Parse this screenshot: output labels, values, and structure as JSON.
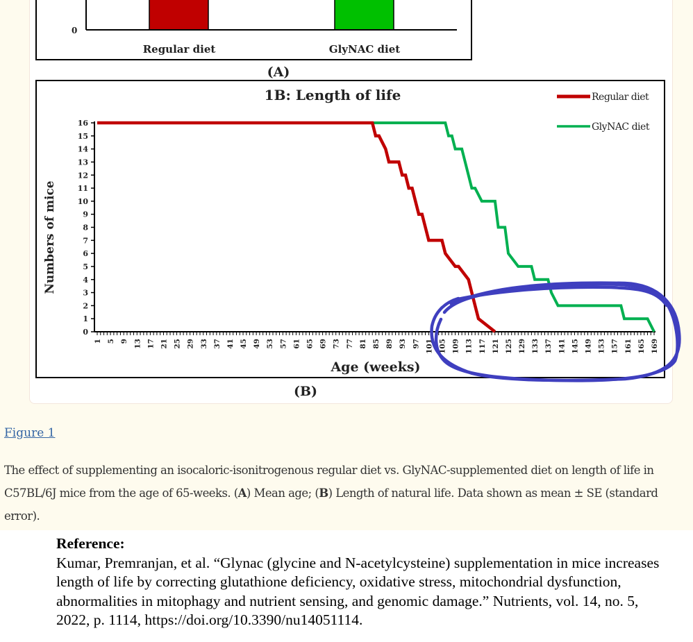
{
  "figure": {
    "panel_a": {
      "y_zero_label": "0",
      "bar_labels": [
        "Regular diet",
        "GlyNAC diet"
      ],
      "bar_colors": [
        "#c00000",
        "#00c000"
      ],
      "panel_label": "(A)"
    },
    "panel_b": {
      "panel_label": "(B)"
    },
    "annotation": {
      "type": "hand-drawn ellipse",
      "color": "#3f3fbf",
      "encloses": "tail region of both curves, ages ~101 to ~169 weeks"
    }
  },
  "chart_data": [
    {
      "type": "bar",
      "title": "",
      "categories": [
        "Regular diet",
        "GlyNAC diet"
      ],
      "values": null,
      "note": "Panel (A) Mean age; only the bar bottoms and the y-axis '0' tick are visible (cropped at top)",
      "ylabel": "",
      "visible_ytick": "0"
    },
    {
      "type": "line",
      "title": "1B: Length of life",
      "xlabel": "Age (weeks)",
      "ylabel": "Numbers of mice",
      "xlim": [
        1,
        169
      ],
      "ylim": [
        0,
        16
      ],
      "xticks": [
        1,
        5,
        9,
        13,
        17,
        21,
        25,
        29,
        33,
        37,
        41,
        45,
        49,
        53,
        57,
        61,
        65,
        69,
        73,
        77,
        81,
        85,
        89,
        93,
        97,
        101,
        105,
        109,
        113,
        117,
        121,
        125,
        129,
        133,
        137,
        141,
        145,
        149,
        153,
        157,
        161,
        165,
        169
      ],
      "yticks": [
        0,
        1,
        2,
        3,
        4,
        5,
        6,
        7,
        8,
        9,
        10,
        11,
        12,
        13,
        14,
        15,
        16
      ],
      "legend_position": "top-right",
      "grid": false,
      "step": true,
      "series": [
        {
          "name": "Regular diet",
          "color": "#c00000",
          "x": [
            1,
            65,
            84,
            85,
            86,
            88,
            89,
            92,
            93,
            94,
            95,
            96,
            97,
            98,
            99,
            100,
            101,
            105,
            106,
            109,
            110,
            113,
            114,
            115,
            116,
            121
          ],
          "y": [
            16,
            16,
            16,
            15,
            15,
            14,
            13,
            13,
            12,
            12,
            11,
            11,
            10,
            9,
            9,
            8,
            7,
            7,
            6,
            5,
            5,
            4,
            3,
            2,
            1,
            0
          ]
        },
        {
          "name": "GlyNAC diet",
          "color": "#00b050",
          "x": [
            65,
            106,
            107,
            108,
            109,
            111,
            114,
            115,
            117,
            121,
            122,
            124,
            125,
            128,
            129,
            132,
            133,
            137,
            138,
            140,
            159,
            160,
            167,
            169
          ],
          "y": [
            16,
            16,
            15,
            15,
            14,
            14,
            11,
            11,
            10,
            10,
            8,
            8,
            6,
            5,
            5,
            5,
            4,
            4,
            3,
            2,
            2,
            1,
            1,
            0
          ]
        }
      ]
    }
  ],
  "caption": {
    "figure_link": "Figure 1",
    "text_1": "The effect of supplementing an isocaloric-isonitrogenous regular diet vs. GlyNAC-supplemented diet on length of life in C57BL/6J mice from the age of 65-weeks. (",
    "bold_a": "A",
    "text_2": ") Mean age; (",
    "bold_b": "B",
    "text_3": ") Length of natural life. Data shown as mean ± SE (standard error)."
  },
  "reference": {
    "heading": "Reference:",
    "text": "Kumar, Premranjan, et al. “Glynac (glycine and N-acetylcysteine) supplementation in mice increases length of life by correcting glutathione deficiency, oxidative stress, mitochondrial dysfunction, abnormalities in mitophagy and nutrient sensing, and genomic damage.” Nutrients, vol. 14, no. 5, 2022, p. 1114, https://doi.org/10.3390/nu14051114."
  }
}
